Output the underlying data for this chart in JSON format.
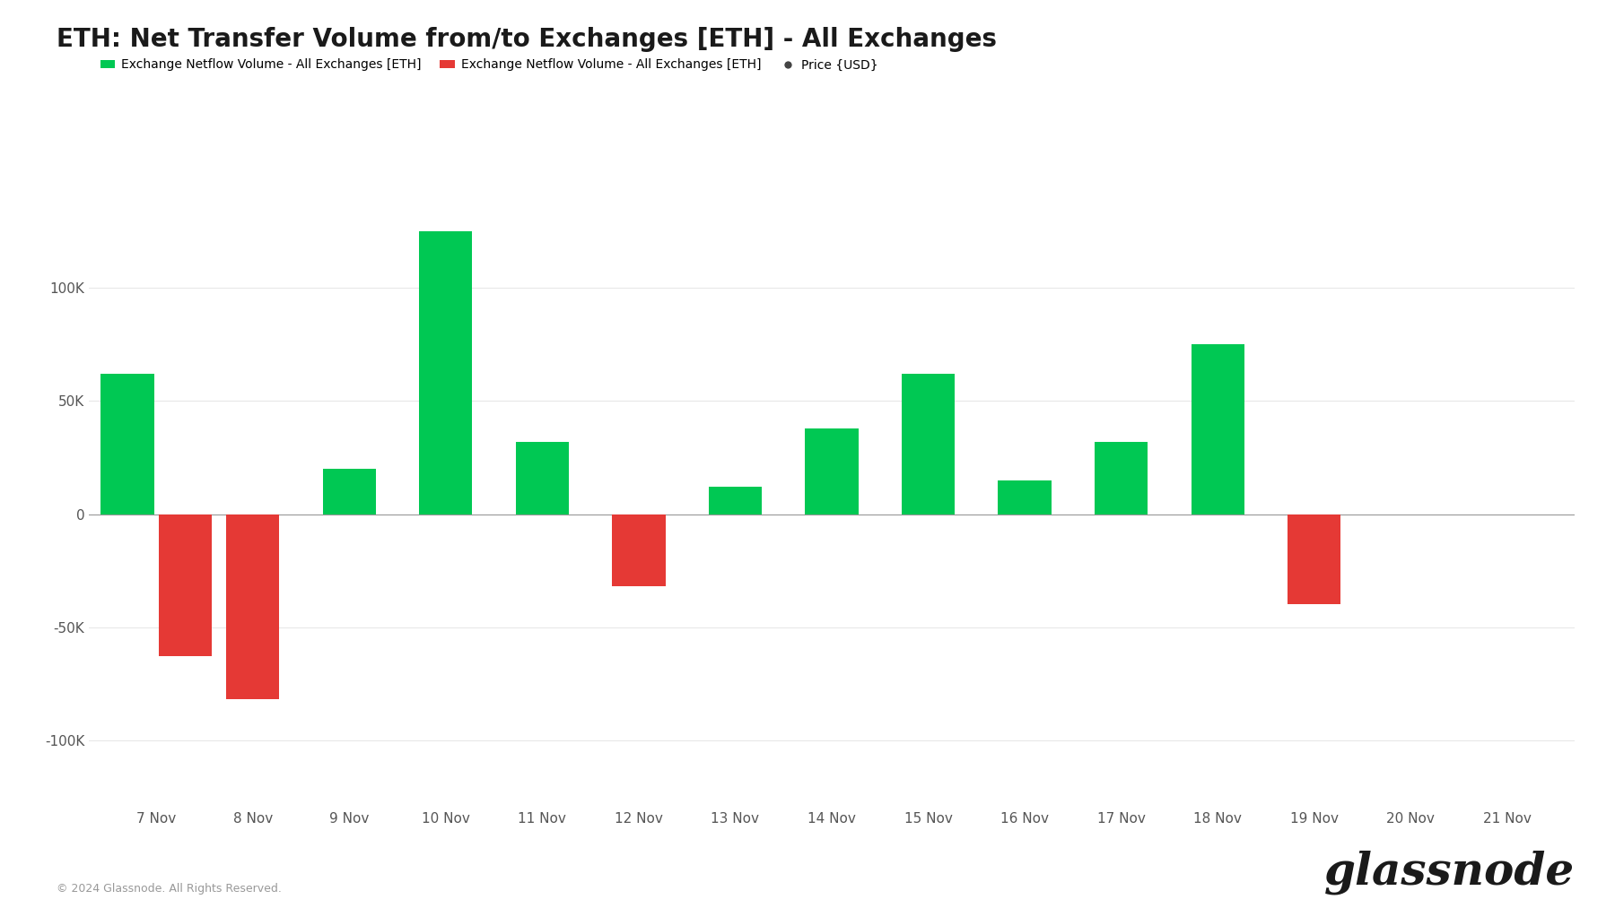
{
  "title": "ETH: Net Transfer Volume from/to Exchanges [ETH] - All Exchanges",
  "background_color": "#ffffff",
  "bars": [
    {
      "label": "7 Nov",
      "value": 62000
    },
    {
      "label": "7 Nov",
      "value": -63000
    },
    {
      "label": "8 Nov",
      "value": -82000
    },
    {
      "label": "9 Nov",
      "value": 20000
    },
    {
      "label": "10 Nov",
      "value": 125000
    },
    {
      "label": "11 Nov",
      "value": 32000
    },
    {
      "label": "12 Nov",
      "value": -32000
    },
    {
      "label": "13 Nov",
      "value": 12000
    },
    {
      "label": "14 Nov",
      "value": 38000
    },
    {
      "label": "15 Nov",
      "value": 62000
    },
    {
      "label": "16 Nov",
      "value": 15000
    },
    {
      "label": "17 Nov",
      "value": 32000
    },
    {
      "label": "18 Nov",
      "value": 75000
    },
    {
      "label": "19 Nov",
      "value": -40000
    }
  ],
  "x_tick_labels": [
    "7 Nov",
    "8 Nov",
    "9 Nov",
    "10 Nov",
    "11 Nov",
    "12 Nov",
    "13 Nov",
    "14 Nov",
    "15 Nov",
    "16 Nov",
    "17 Nov",
    "18 Nov",
    "19 Nov",
    "20 Nov",
    "21 Nov"
  ],
  "green_color": "#00c853",
  "red_color": "#e53935",
  "ylim_min": -130000,
  "ylim_max": 155000,
  "ytick_values": [
    -100000,
    -50000,
    0,
    50000,
    100000
  ],
  "ytick_labels": [
    "-100K",
    "-50K",
    "0",
    "50K",
    "100K"
  ],
  "legend_green_label": "Exchange Netflow Volume - All Exchanges [ETH]",
  "legend_red_label": "Exchange Netflow Volume - All Exchanges [ETH]",
  "legend_price_label": "Price {USD}",
  "footer_text": "© 2024 Glassnode. All Rights Reserved.",
  "watermark_text": "glassnode",
  "title_fontsize": 20,
  "bar_width": 0.55
}
